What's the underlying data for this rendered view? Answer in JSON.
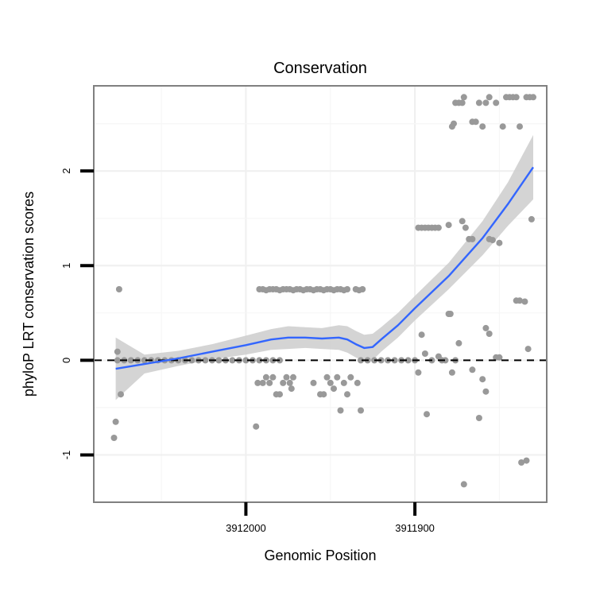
{
  "chart_data": {
    "type": "scatter",
    "title": "Conservation",
    "xlabel": "Genomic Position",
    "ylabel": "phyloP LRT conservation scores",
    "x_reversed": true,
    "xlim": [
      3912090,
      3911822
    ],
    "ylim": [
      -1.5,
      2.9
    ],
    "x_ticks": [
      3912000,
      3911900
    ],
    "x_tick_labels": [
      "3912000",
      "3911900"
    ],
    "y_ticks": [
      -1,
      0,
      1,
      2
    ],
    "y_tick_labels": [
      "-1",
      "0",
      "1",
      "2"
    ],
    "reference_line": {
      "y": 0,
      "style": "dashed",
      "color": "#000000"
    },
    "grid": true,
    "colors": {
      "points": "#999999",
      "smooth_line": "#3366FF",
      "confidence_band": "#cccccc",
      "panel_border": "#808080"
    },
    "points": [
      [
        3912078,
        -0.82
      ],
      [
        3912077,
        -0.65
      ],
      [
        3912076,
        0.09
      ],
      [
        3912075,
        0.75
      ],
      [
        3912074,
        -0.36
      ],
      [
        3912076,
        0
      ],
      [
        3912072,
        0
      ],
      [
        3912068,
        0
      ],
      [
        3912064,
        0
      ],
      [
        3912060,
        0
      ],
      [
        3912056,
        0
      ],
      [
        3912052,
        0
      ],
      [
        3912048,
        0
      ],
      [
        3912044,
        0
      ],
      [
        3912040,
        0
      ],
      [
        3912036,
        0
      ],
      [
        3912032,
        0
      ],
      [
        3912028,
        0
      ],
      [
        3912024,
        0
      ],
      [
        3912020,
        0
      ],
      [
        3912016,
        0
      ],
      [
        3912012,
        0
      ],
      [
        3912008,
        0
      ],
      [
        3912004,
        0
      ],
      [
        3912000,
        0
      ],
      [
        3911996,
        0
      ],
      [
        3911992,
        0
      ],
      [
        3911988,
        0
      ],
      [
        3911984,
        0
      ],
      [
        3911980,
        0
      ],
      [
        3911994,
        -0.7
      ],
      [
        3911993,
        -0.24
      ],
      [
        3911990,
        -0.24
      ],
      [
        3911988,
        -0.18
      ],
      [
        3911986,
        -0.24
      ],
      [
        3911984,
        -0.18
      ],
      [
        3911982,
        -0.36
      ],
      [
        3911980,
        -0.36
      ],
      [
        3911978,
        -0.24
      ],
      [
        3911976,
        -0.18
      ],
      [
        3911974,
        -0.24
      ],
      [
        3911973,
        -0.3
      ],
      [
        3911972,
        -0.18
      ],
      [
        3911960,
        -0.24
      ],
      [
        3911956,
        -0.36
      ],
      [
        3911954,
        -0.36
      ],
      [
        3911952,
        -0.18
      ],
      [
        3911950,
        -0.24
      ],
      [
        3911948,
        -0.3
      ],
      [
        3911946,
        -0.18
      ],
      [
        3911944,
        -0.53
      ],
      [
        3911942,
        -0.24
      ],
      [
        3911940,
        -0.36
      ],
      [
        3911938,
        -0.18
      ],
      [
        3911934,
        -0.24
      ],
      [
        3911932,
        -0.53
      ],
      [
        3911992,
        0.75
      ],
      [
        3911990,
        0.75
      ],
      [
        3911988,
        0.74
      ],
      [
        3911986,
        0.75
      ],
      [
        3911984,
        0.75
      ],
      [
        3911982,
        0.75
      ],
      [
        3911980,
        0.74
      ],
      [
        3911978,
        0.75
      ],
      [
        3911976,
        0.75
      ],
      [
        3911974,
        0.75
      ],
      [
        3911972,
        0.74
      ],
      [
        3911970,
        0.75
      ],
      [
        3911968,
        0.75
      ],
      [
        3911966,
        0.74
      ],
      [
        3911964,
        0.75
      ],
      [
        3911962,
        0.75
      ],
      [
        3911960,
        0.74
      ],
      [
        3911958,
        0.75
      ],
      [
        3911956,
        0.75
      ],
      [
        3911954,
        0.74
      ],
      [
        3911952,
        0.75
      ],
      [
        3911950,
        0.75
      ],
      [
        3911948,
        0.74
      ],
      [
        3911946,
        0.75
      ],
      [
        3911944,
        0.75
      ],
      [
        3911942,
        0.74
      ],
      [
        3911940,
        0.75
      ],
      [
        3911935,
        0.75
      ],
      [
        3911933,
        0.74
      ],
      [
        3911931,
        0.75
      ],
      [
        3911932,
        0
      ],
      [
        3911928,
        0
      ],
      [
        3911924,
        0
      ],
      [
        3911920,
        0
      ],
      [
        3911916,
        0
      ],
      [
        3911912,
        0
      ],
      [
        3911908,
        0
      ],
      [
        3911904,
        0
      ],
      [
        3911900,
        0
      ],
      [
        3911898,
        -0.13
      ],
      [
        3911896,
        0.27
      ],
      [
        3911894,
        0.07
      ],
      [
        3911893,
        -0.57
      ],
      [
        3911890,
        0.0
      ],
      [
        3911886,
        0.04
      ],
      [
        3911884,
        0.0
      ],
      [
        3911882,
        0.0
      ],
      [
        3911880,
        0.49
      ],
      [
        3911879,
        0.49
      ],
      [
        3911878,
        -0.13
      ],
      [
        3911876,
        0.0
      ],
      [
        3911874,
        0.18
      ],
      [
        3911871,
        -1.31
      ],
      [
        3911866,
        -0.1
      ],
      [
        3911862,
        -0.61
      ],
      [
        3911858,
        0.34
      ],
      [
        3911856,
        0.28
      ],
      [
        3911852,
        0.03
      ],
      [
        3911850,
        0.03
      ],
      [
        3911840,
        0.63
      ],
      [
        3911838,
        0.63
      ],
      [
        3911835,
        0.62
      ],
      [
        3911833,
        0.12
      ],
      [
        3911837,
        -1.08
      ],
      [
        3911834,
        -1.06
      ],
      [
        3911831,
        1.49
      ],
      [
        3911850,
        1.24
      ],
      [
        3911854,
        1.27
      ],
      [
        3911856,
        1.28
      ],
      [
        3911858,
        -0.33
      ],
      [
        3911860,
        -0.2
      ],
      [
        3911898,
        1.4
      ],
      [
        3911896,
        1.4
      ],
      [
        3911894,
        1.4
      ],
      [
        3911892,
        1.4
      ],
      [
        3911890,
        1.4
      ],
      [
        3911888,
        1.4
      ],
      [
        3911886,
        1.4
      ],
      [
        3911880,
        1.43
      ],
      [
        3911872,
        1.47
      ],
      [
        3911870,
        1.4
      ],
      [
        3911868,
        1.28
      ],
      [
        3911866,
        1.28
      ],
      [
        3911878,
        2.47
      ],
      [
        3911877,
        2.5
      ],
      [
        3911876,
        2.72
      ],
      [
        3911874,
        2.72
      ],
      [
        3911872,
        2.72
      ],
      [
        3911871,
        2.78
      ],
      [
        3911866,
        2.52
      ],
      [
        3911864,
        2.52
      ],
      [
        3911862,
        2.72
      ],
      [
        3911860,
        2.47
      ],
      [
        3911858,
        2.72
      ],
      [
        3911856,
        2.78
      ],
      [
        3911852,
        2.72
      ],
      [
        3911848,
        2.47
      ],
      [
        3911846,
        2.78
      ],
      [
        3911844,
        2.78
      ],
      [
        3911842,
        2.78
      ],
      [
        3911840,
        2.78
      ],
      [
        3911838,
        2.47
      ],
      [
        3911834,
        2.78
      ],
      [
        3911832,
        2.78
      ],
      [
        3911830,
        2.78
      ]
    ],
    "smooth": {
      "x": [
        3912077,
        3912060,
        3912040,
        3912020,
        3912000,
        3911985,
        3911975,
        3911965,
        3911955,
        3911945,
        3911940,
        3911935,
        3911930,
        3911925,
        3911920,
        3911910,
        3911900,
        3911880,
        3911860,
        3911845,
        3911830
      ],
      "y": [
        -0.09,
        -0.04,
        0.02,
        0.09,
        0.16,
        0.22,
        0.24,
        0.24,
        0.23,
        0.24,
        0.22,
        0.17,
        0.13,
        0.14,
        0.22,
        0.37,
        0.55,
        0.89,
        1.29,
        1.65,
        2.04
      ],
      "lower": [
        -0.42,
        -0.14,
        -0.06,
        0.01,
        0.06,
        0.11,
        0.12,
        0.13,
        0.12,
        0.11,
        0.08,
        0.03,
        -0.01,
        0.0,
        0.09,
        0.24,
        0.42,
        0.75,
        1.11,
        1.42,
        1.7
      ],
      "upper": [
        0.24,
        0.06,
        0.1,
        0.17,
        0.26,
        0.33,
        0.36,
        0.35,
        0.34,
        0.37,
        0.36,
        0.31,
        0.27,
        0.28,
        0.35,
        0.5,
        0.68,
        1.03,
        1.47,
        1.88,
        2.38
      ]
    }
  }
}
